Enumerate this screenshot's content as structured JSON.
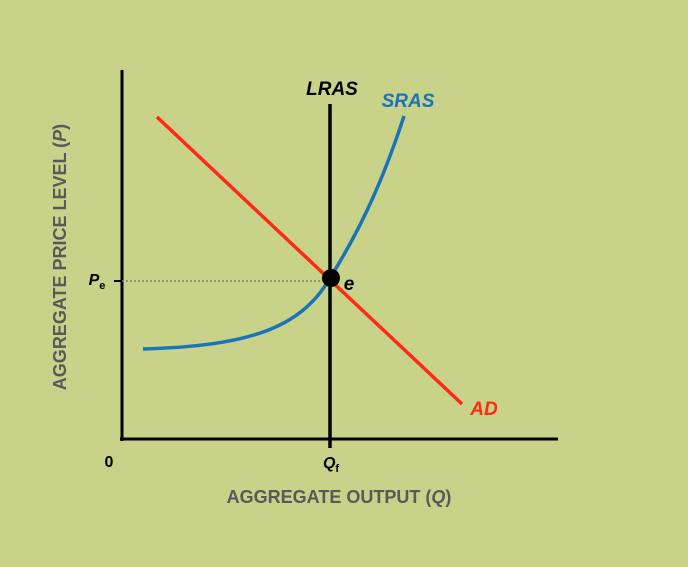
{
  "chart_data": {
    "type": "line",
    "xlabel_text": "AGGREGATE OUTPUT (",
    "xlabel_var": "Q",
    "xlabel_close": ")",
    "ylabel_text": "AGGREGATE PRICE LEVEL (",
    "ylabel_var": "P",
    "ylabel_close": ")",
    "origin_label": "0",
    "x_tick": {
      "main": "Q",
      "sub": "f"
    },
    "y_tick": {
      "main": "P",
      "sub": "e"
    },
    "equilibrium_label": "e",
    "curves": {
      "LRAS": {
        "name": "LRAS",
        "color": "#000000",
        "style": "vertical"
      },
      "SRAS": {
        "name": "SRAS",
        "color": "#1a74b8",
        "style": "upward-convex"
      },
      "AD": {
        "name": "AD",
        "color": "#ff2a12",
        "style": "downward-linear"
      }
    },
    "grid": false,
    "guide_line": "dotted horizontal from Pe to equilibrium"
  },
  "colors": {
    "background": "#c8d289",
    "axis": "#000000",
    "equilibrium_point": "#000000",
    "guide": "#808080"
  }
}
